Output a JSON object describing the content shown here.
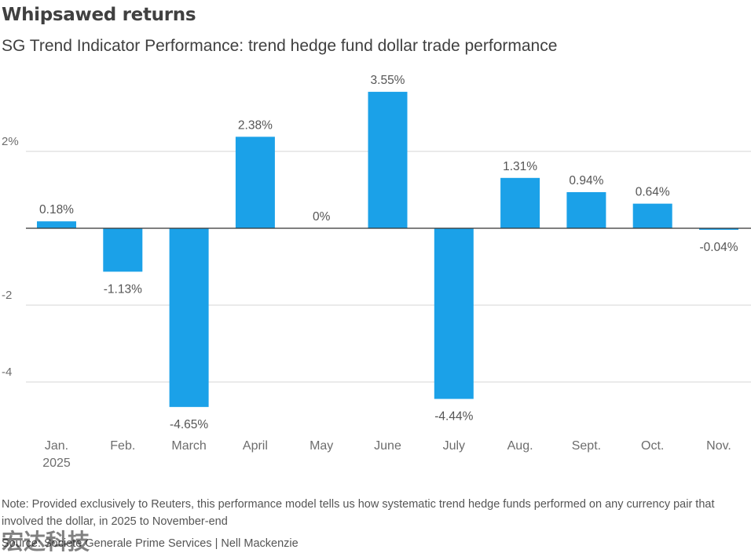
{
  "header": {
    "title": "Whipsawed returns",
    "subtitle": "SG Trend Indicator Performance: trend hedge fund dollar trade performance"
  },
  "chart_data": {
    "type": "bar",
    "title": "Whipsawed returns",
    "subtitle": "SG Trend Indicator Performance: trend hedge fund dollar trade performance",
    "categories": [
      [
        "Jan.",
        "2025"
      ],
      [
        "Feb."
      ],
      [
        "March"
      ],
      [
        "April"
      ],
      [
        "May"
      ],
      [
        "June"
      ],
      [
        "July"
      ],
      [
        "Aug."
      ],
      [
        "Sept."
      ],
      [
        "Oct."
      ],
      [
        "Nov."
      ]
    ],
    "values": [
      0.18,
      -1.13,
      -4.65,
      2.38,
      0,
      3.55,
      -4.44,
      1.31,
      0.94,
      0.64,
      -0.04
    ],
    "data_labels": [
      "0.18%",
      "-1.13%",
      "-4.65%",
      "2.38%",
      "0%",
      "3.55%",
      "-4.44%",
      "1.31%",
      "0.94%",
      "0.64%",
      "-0.04%"
    ],
    "y_ticks": [
      {
        "value": 2,
        "label": "2%"
      },
      {
        "value": 0,
        "label": ""
      },
      {
        "value": -2,
        "label": "-2"
      },
      {
        "value": -4,
        "label": "-4"
      }
    ],
    "ylim": [
      -5.0,
      4.0
    ],
    "xlabel": "",
    "ylabel": "",
    "grid": true,
    "bar_color": "#1ba1e8"
  },
  "footer": {
    "note": "Note: Provided exclusively to Reuters, this performance model tells us how systematic trend hedge funds performed on any currency pair that involved the dollar, in 2025 to November-end",
    "source": "Source: Societe Generale Prime Services | Nell Mackenzie",
    "watermark": "宏达科技"
  }
}
